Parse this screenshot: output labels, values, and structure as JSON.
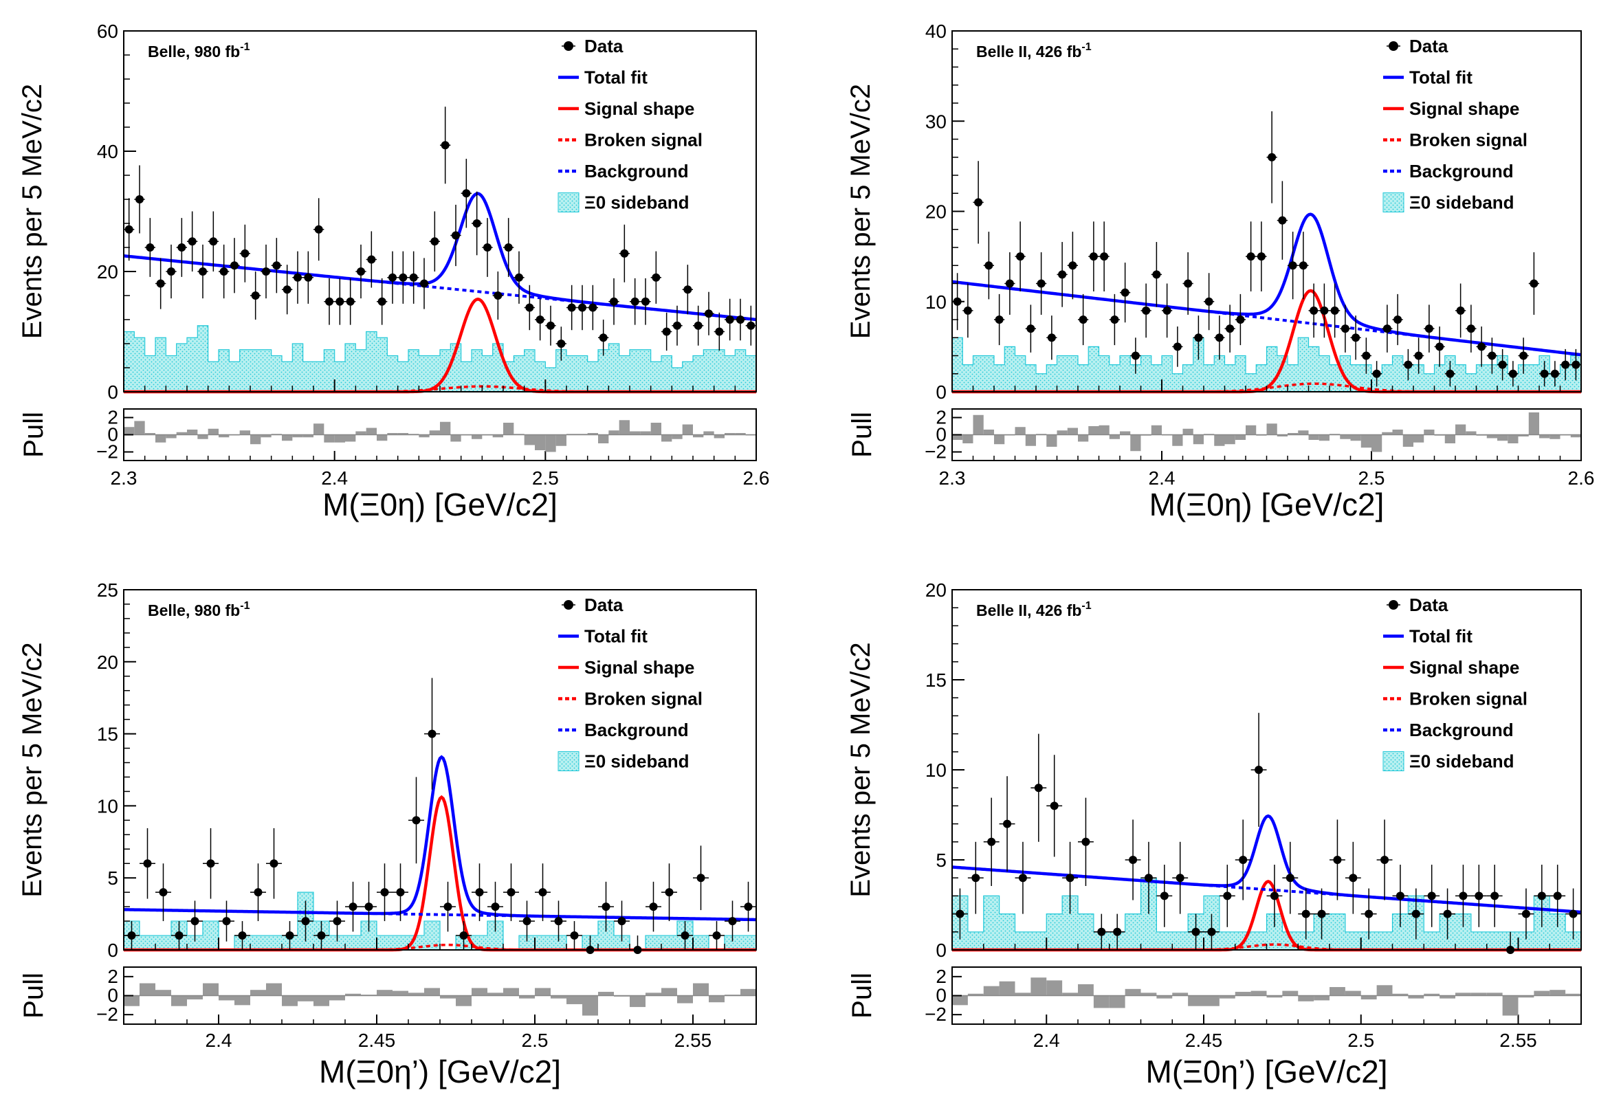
{
  "chart_data": [
    {
      "type": "histogram-fit",
      "label": "Belle, 980 fb-1",
      "experiment": "Belle, 980 fb",
      "lumi_sup": "-1",
      "ylabel": "Events per 5 MeV/c2",
      "xlabel": "M(Ξ0η) [GeV/c2]",
      "xlim": [
        2.3,
        2.6
      ],
      "ylim": [
        0,
        60
      ],
      "xticks": [
        "2.3",
        "2.4",
        "2.5",
        "2.6"
      ],
      "yticks": [
        "0",
        "20",
        "40",
        "60"
      ],
      "pull_label": "Pull",
      "pull_ticks": [
        "2",
        "0",
        "−2"
      ],
      "pull_ylim": [
        -3,
        3
      ],
      "bin_width": 0.005,
      "fit": {
        "bkg_at_min": 22.6,
        "bkg_at_max": 12.0,
        "peak_mean": 2.468,
        "peak_sigma": 0.0083,
        "peak_amp": 15.4,
        "broken_amp": 0.9
      },
      "data": {
        "x": [
          2.3025,
          2.3075,
          2.3125,
          2.3175,
          2.3225,
          2.3275,
          2.3325,
          2.3375,
          2.3425,
          2.3475,
          2.3525,
          2.3575,
          2.3625,
          2.3675,
          2.3725,
          2.3775,
          2.3825,
          2.3875,
          2.3925,
          2.3975,
          2.4025,
          2.4075,
          2.4125,
          2.4175,
          2.4225,
          2.4275,
          2.4325,
          2.4375,
          2.4425,
          2.4475,
          2.4525,
          2.4575,
          2.4625,
          2.4675,
          2.4725,
          2.4775,
          2.4825,
          2.4875,
          2.4925,
          2.4975,
          2.5025,
          2.5075,
          2.5125,
          2.5175,
          2.5225,
          2.5275,
          2.5325,
          2.5375,
          2.5425,
          2.5475,
          2.5525,
          2.5575,
          2.5625,
          2.5675,
          2.5725,
          2.5775,
          2.5825,
          2.5875,
          2.5925,
          2.5975
        ],
        "y": [
          27,
          32,
          24,
          18,
          20,
          24,
          25,
          20,
          25,
          20,
          21,
          23,
          16,
          20,
          21,
          17,
          19,
          19,
          27,
          15,
          15,
          15,
          20,
          22,
          15,
          19,
          19,
          19,
          18,
          25,
          41,
          26,
          33,
          28,
          24,
          16,
          24,
          19,
          14,
          12,
          11,
          8,
          14,
          14,
          14,
          9,
          15,
          23,
          15,
          15,
          19,
          10,
          11,
          17,
          11,
          13,
          10,
          12,
          12,
          11
        ],
        "pull": [
          0.9,
          1.6,
          0.2,
          -0.9,
          -0.4,
          0.3,
          0.6,
          -0.5,
          0.7,
          -0.3,
          0.0,
          0.5,
          -1.1,
          -0.3,
          0.1,
          -0.7,
          -0.3,
          -0.3,
          1.3,
          -0.9,
          -0.9,
          -0.8,
          0.4,
          0.8,
          -0.7,
          0.2,
          0.2,
          0.1,
          -0.3,
          0.5,
          1.5,
          -0.8,
          0.0,
          -0.5,
          0.0,
          -0.3,
          1.4,
          0.1,
          -1.2,
          -1.8,
          -2.0,
          -1.3,
          0.1,
          0.1,
          0.2,
          -1.0,
          0.5,
          1.7,
          0.4,
          0.4,
          1.4,
          -0.8,
          -0.5,
          1.2,
          -0.3,
          0.4,
          -0.4,
          0.2,
          0.2,
          0.0
        ]
      },
      "sideband": [
        10,
        9,
        6,
        9,
        6,
        8,
        9,
        11,
        5,
        7,
        5,
        7,
        7,
        7,
        6,
        5,
        8,
        5,
        5,
        7,
        5,
        8,
        7,
        10,
        9,
        6,
        5,
        7,
        6,
        6,
        7,
        8,
        5,
        7,
        6,
        8,
        5,
        6,
        7,
        5,
        4,
        7,
        6,
        6,
        5,
        7,
        8,
        6,
        7,
        7,
        5,
        6,
        4,
        5,
        6,
        7,
        7,
        6,
        7,
        6
      ],
      "legend": [
        {
          "key": "data",
          "label": "Data"
        },
        {
          "key": "total",
          "label": "Total fit"
        },
        {
          "key": "signal",
          "label": "Signal shape"
        },
        {
          "key": "broken",
          "label": "Broken signal"
        },
        {
          "key": "bkg",
          "label": "Background"
        },
        {
          "key": "sideband",
          "label": "Ξ0 sideband"
        }
      ]
    },
    {
      "type": "histogram-fit",
      "label": "Belle II, 426 fb-1",
      "experiment": "Belle II, 426 fb",
      "lumi_sup": "-1",
      "ylabel": "Events per 5 MeV/c2",
      "xlabel": "M(Ξ0η) [GeV/c2]",
      "xlim": [
        2.3,
        2.6
      ],
      "ylim": [
        0,
        40
      ],
      "xticks": [
        "2.3",
        "2.4",
        "2.5",
        "2.6"
      ],
      "yticks": [
        "0",
        "10",
        "20",
        "30",
        "40"
      ],
      "pull_label": "Pull",
      "pull_ticks": [
        "2",
        "0",
        "−2"
      ],
      "pull_ylim": [
        -3,
        3
      ],
      "bin_width": 0.005,
      "fit": {
        "bkg_at_min": 12.2,
        "bkg_at_max": 4.1,
        "peak_mean": 2.471,
        "peak_sigma": 0.0083,
        "peak_amp": 11.2,
        "broken_amp": 0.9
      },
      "data": {
        "x": [
          2.3025,
          2.3075,
          2.3125,
          2.3175,
          2.3225,
          2.3275,
          2.3325,
          2.3375,
          2.3425,
          2.3475,
          2.3525,
          2.3575,
          2.3625,
          2.3675,
          2.3725,
          2.3775,
          2.3825,
          2.3875,
          2.3925,
          2.3975,
          2.4025,
          2.4075,
          2.4125,
          2.4175,
          2.4225,
          2.4275,
          2.4325,
          2.4375,
          2.4425,
          2.4475,
          2.4525,
          2.4575,
          2.4625,
          2.4675,
          2.4725,
          2.4775,
          2.4825,
          2.4875,
          2.4925,
          2.4975,
          2.5025,
          2.5075,
          2.5125,
          2.5175,
          2.5225,
          2.5275,
          2.5325,
          2.5375,
          2.5425,
          2.5475,
          2.5525,
          2.5575,
          2.5625,
          2.5675,
          2.5725,
          2.5775,
          2.5825,
          2.5875,
          2.5925,
          2.5975
        ],
        "y": [
          10,
          9,
          21,
          14,
          8,
          12,
          15,
          7,
          12,
          6,
          13,
          14,
          8,
          15,
          15,
          8,
          11,
          4,
          9,
          13,
          9,
          5,
          12,
          6,
          10,
          6,
          7,
          8,
          15,
          15,
          26,
          19,
          14,
          14,
          9,
          9,
          9,
          7,
          6,
          4,
          2,
          7,
          8,
          3,
          4,
          7,
          5,
          2,
          9,
          7,
          5,
          4,
          3,
          2,
          4,
          12,
          2,
          2,
          3,
          3
        ],
        "pull": [
          -0.6,
          -1.0,
          2.3,
          0.6,
          -1.1,
          0.0,
          0.9,
          -1.3,
          0.1,
          -1.4,
          0.5,
          0.8,
          -0.8,
          1.0,
          1.1,
          -0.5,
          0.4,
          -1.9,
          -0.1,
          1.1,
          0.0,
          -1.3,
          0.7,
          -1.1,
          0.1,
          -1.3,
          -1.1,
          -0.6,
          1.1,
          -0.1,
          1.3,
          -0.2,
          0.2,
          0.5,
          -0.6,
          -0.7,
          0.1,
          -0.5,
          -0.7,
          -1.5,
          -2.0,
          0.3,
          0.6,
          -1.4,
          -0.9,
          0.6,
          -0.1,
          -1.0,
          1.2,
          0.4,
          -0.1,
          -0.4,
          -0.7,
          -1.0,
          -0.2,
          2.6,
          -0.4,
          -0.5,
          0.0,
          -0.3
        ]
      },
      "sideband": [
        6,
        3,
        4,
        4,
        3,
        5,
        4,
        3,
        2,
        3,
        4,
        4,
        3,
        5,
        4,
        3,
        4,
        3,
        4,
        3,
        4,
        2,
        3,
        6,
        3,
        4,
        3,
        4,
        2,
        3,
        5,
        4,
        3,
        6,
        5,
        4,
        3,
        4,
        3,
        3,
        2,
        3,
        4,
        3,
        3,
        2,
        3,
        4,
        3,
        2,
        3,
        3,
        4,
        2,
        3,
        3,
        4,
        2,
        3,
        4
      ],
      "legend": [
        {
          "key": "data",
          "label": "Data"
        },
        {
          "key": "total",
          "label": "Total fit"
        },
        {
          "key": "signal",
          "label": "Signal shape"
        },
        {
          "key": "broken",
          "label": "Broken signal"
        },
        {
          "key": "bkg",
          "label": "Background"
        },
        {
          "key": "sideband",
          "label": "Ξ0 sideband"
        }
      ]
    },
    {
      "type": "histogram-fit",
      "label": "Belle, 980 fb-1",
      "experiment": "Belle, 980 fb",
      "lumi_sup": "-1",
      "ylabel": "Events per 5 MeV/c2",
      "xlabel": "M(Ξ0η’) [GeV/c2]",
      "xlim": [
        2.37,
        2.57
      ],
      "ylim": [
        0,
        25
      ],
      "xticks": [
        "2.4",
        "2.45",
        "2.5",
        "2.55"
      ],
      "xtick_values": [
        2.4,
        2.45,
        2.5,
        2.55
      ],
      "yticks": [
        "0",
        "5",
        "10",
        "15",
        "20",
        "25"
      ],
      "pull_label": "Pull",
      "pull_ticks": [
        "2",
        "0",
        "−2"
      ],
      "pull_ylim": [
        -3,
        3
      ],
      "bin_width": 0.005,
      "fit": {
        "bkg_at_min": 2.8,
        "bkg_at_max": 2.1,
        "peak_mean": 2.4705,
        "peak_sigma": 0.0038,
        "peak_amp": 10.6,
        "broken_amp": 0.35
      },
      "data": {
        "x": [
          2.3725,
          2.3775,
          2.3825,
          2.3875,
          2.3925,
          2.3975,
          2.4025,
          2.4075,
          2.4125,
          2.4175,
          2.4225,
          2.4275,
          2.4325,
          2.4375,
          2.4425,
          2.4475,
          2.4525,
          2.4575,
          2.4625,
          2.4675,
          2.4725,
          2.4775,
          2.4825,
          2.4875,
          2.4925,
          2.4975,
          2.5025,
          2.5075,
          2.5125,
          2.5175,
          2.5225,
          2.5275,
          2.5325,
          2.5375,
          2.5425,
          2.5475,
          2.5525,
          2.5575,
          2.5625,
          2.5675
        ],
        "y": [
          1,
          6,
          4,
          1,
          2,
          6,
          2,
          1,
          4,
          6,
          1,
          2,
          1,
          2,
          3,
          3,
          4,
          4,
          9,
          15,
          3,
          1,
          4,
          3,
          4,
          2,
          4,
          2,
          1,
          0,
          3,
          2,
          0,
          3,
          4,
          1,
          5,
          1,
          2,
          3
        ],
        "pull": [
          -1.1,
          1.3,
          0.6,
          -1.1,
          -0.4,
          1.3,
          -0.5,
          -1.0,
          0.6,
          1.3,
          -1.1,
          -0.6,
          -1.1,
          -0.5,
          0.2,
          0.1,
          0.6,
          0.5,
          0.3,
          0.8,
          -0.3,
          -1.1,
          0.8,
          0.3,
          0.8,
          -0.3,
          0.8,
          -0.3,
          -0.9,
          -2.1,
          0.4,
          -0.1,
          -1.2,
          0.3,
          0.8,
          -0.8,
          1.3,
          -0.7,
          0.1,
          0.7
        ]
      },
      "sideband": [
        2,
        1,
        1,
        2,
        1,
        2,
        0,
        1,
        1,
        1,
        1,
        4,
        2,
        1,
        1,
        2,
        1,
        1,
        1,
        2,
        0,
        1,
        1,
        2,
        0,
        1,
        1,
        1,
        0,
        1,
        2,
        1,
        0,
        1,
        1,
        2,
        1,
        0,
        1,
        1
      ],
      "legend": [
        {
          "key": "data",
          "label": "Data"
        },
        {
          "key": "total",
          "label": "Total fit"
        },
        {
          "key": "signal",
          "label": "Signal shape"
        },
        {
          "key": "broken",
          "label": "Broken signal"
        },
        {
          "key": "bkg",
          "label": "Background"
        },
        {
          "key": "sideband",
          "label": "Ξ0 sideband"
        }
      ]
    },
    {
      "type": "histogram-fit",
      "label": "Belle II, 426 fb-1",
      "experiment": "Belle II, 426 fb",
      "lumi_sup": "-1",
      "ylabel": "Events per 5 MeV/c2",
      "xlabel": "M(Ξ0η’) [GeV/c2]",
      "xlim": [
        2.37,
        2.57
      ],
      "ylim": [
        0,
        20
      ],
      "xticks": [
        "2.4",
        "2.45",
        "2.5",
        "2.55"
      ],
      "xtick_values": [
        2.4,
        2.45,
        2.5,
        2.55
      ],
      "yticks": [
        "0",
        "5",
        "10",
        "15",
        "20"
      ],
      "pull_label": "Pull",
      "pull_ticks": [
        "2",
        "0",
        "−2"
      ],
      "pull_ylim": [
        -3,
        3
      ],
      "bin_width": 0.005,
      "fit": {
        "bkg_at_min": 4.6,
        "bkg_at_max": 2.1,
        "peak_mean": 2.4705,
        "peak_sigma": 0.0038,
        "peak_amp": 3.8,
        "broken_amp": 0.3
      },
      "data": {
        "x": [
          2.3725,
          2.3775,
          2.3825,
          2.3875,
          2.3925,
          2.3975,
          2.4025,
          2.4075,
          2.4125,
          2.4175,
          2.4225,
          2.4275,
          2.4325,
          2.4375,
          2.4425,
          2.4475,
          2.4525,
          2.4575,
          2.4625,
          2.4675,
          2.4725,
          2.4775,
          2.4825,
          2.4875,
          2.4925,
          2.4975,
          2.5025,
          2.5075,
          2.5125,
          2.5175,
          2.5225,
          2.5275,
          2.5325,
          2.5375,
          2.5425,
          2.5475,
          2.5525,
          2.5575,
          2.5625,
          2.5675
        ],
        "y": [
          2,
          4,
          6,
          7,
          4,
          9,
          8,
          4,
          6,
          1,
          1,
          5,
          4,
          3,
          4,
          1,
          1,
          3,
          5,
          10,
          3,
          4,
          2,
          2,
          5,
          4,
          2,
          5,
          3,
          2,
          3,
          2,
          3,
          3,
          3,
          0,
          2,
          3,
          3,
          2
        ],
        "pull": [
          -1.0,
          0.2,
          1.0,
          1.5,
          0.3,
          1.9,
          1.6,
          0.3,
          1.2,
          -1.3,
          -1.3,
          0.7,
          0.3,
          -0.3,
          0.3,
          -1.1,
          -1.1,
          -0.3,
          0.4,
          0.5,
          -0.2,
          0.5,
          -0.6,
          -0.5,
          0.9,
          0.5,
          -0.4,
          1.1,
          0.2,
          -0.3,
          0.2,
          -0.3,
          0.3,
          0.3,
          0.3,
          -2.1,
          -0.2,
          0.5,
          0.6,
          0.2
        ]
      },
      "sideband": [
        3,
        1,
        3,
        2,
        1,
        1,
        2,
        3,
        2,
        1,
        1,
        2,
        4,
        1,
        1,
        2,
        3,
        1,
        1,
        1,
        2,
        1,
        1,
        2,
        2,
        1,
        1,
        1,
        2,
        3,
        1,
        2,
        2,
        1,
        1,
        1,
        1,
        3,
        2,
        1
      ],
      "legend": [
        {
          "key": "data",
          "label": "Data"
        },
        {
          "key": "total",
          "label": "Total fit"
        },
        {
          "key": "signal",
          "label": "Signal shape"
        },
        {
          "key": "broken",
          "label": "Broken signal"
        },
        {
          "key": "bkg",
          "label": "Background"
        },
        {
          "key": "sideband",
          "label": "Ξ0 sideband"
        }
      ]
    }
  ],
  "colors": {
    "data": "#000000",
    "total": "#0000ff",
    "signal": "#ff0000",
    "broken": "#ff0000",
    "bkg": "#0000ff",
    "sideband_fill": "#b8f0f0",
    "sideband_hatch": "#22c8d8",
    "pull": "#999999"
  }
}
